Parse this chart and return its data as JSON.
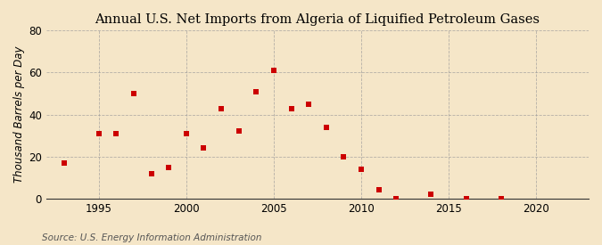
{
  "title": "Annual U.S. Net Imports from Algeria of Liquified Petroleum Gases",
  "ylabel": "Thousand Barrels per Day",
  "source": "Source: U.S. Energy Information Administration",
  "years": [
    1993,
    1995,
    1996,
    1997,
    1998,
    1999,
    2000,
    2001,
    2002,
    2003,
    2004,
    2005,
    2006,
    2007,
    2008,
    2009,
    2010,
    2011,
    2012,
    2014,
    2016,
    2018
  ],
  "values": [
    17,
    31,
    31,
    50,
    12,
    15,
    31,
    24,
    43,
    32,
    51,
    61,
    43,
    45,
    34,
    20,
    14,
    4,
    0,
    2,
    0,
    0
  ],
  "marker_color": "#cc0000",
  "marker_size": 4,
  "bg_color": "#f5e6c8",
  "plot_bg_color": "#f5e6c8",
  "grid_color": "#999999",
  "xlim": [
    1992,
    2023
  ],
  "ylim": [
    0,
    80
  ],
  "yticks": [
    0,
    20,
    40,
    60,
    80
  ],
  "xticks": [
    1995,
    2000,
    2005,
    2010,
    2015,
    2020
  ],
  "title_fontsize": 10.5,
  "label_fontsize": 8.5,
  "tick_fontsize": 8.5,
  "source_fontsize": 7.5
}
